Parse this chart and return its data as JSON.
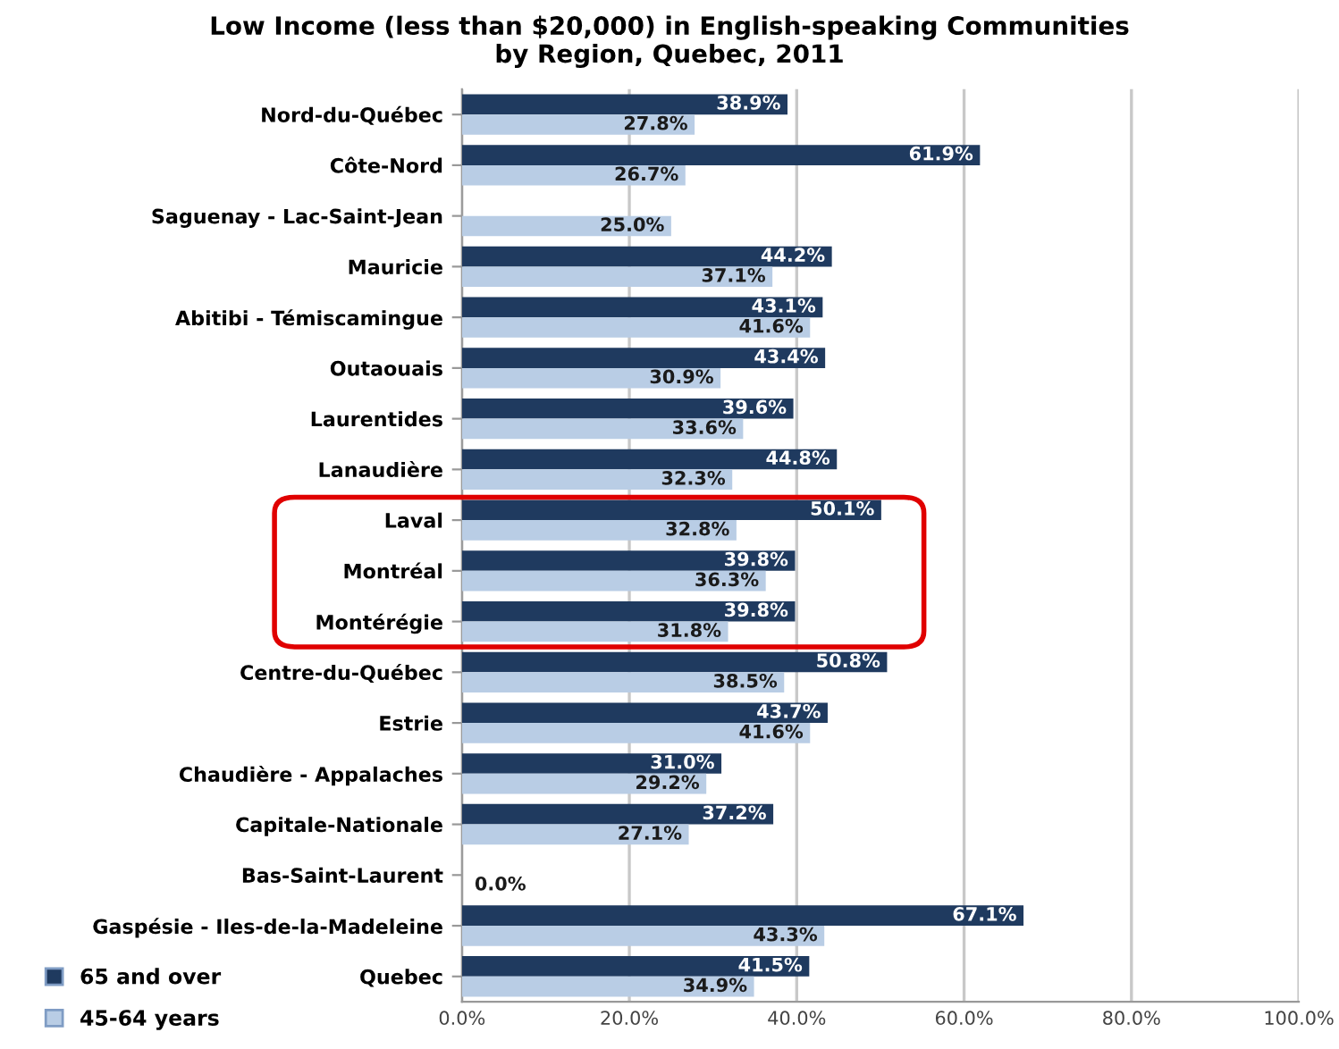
{
  "chart_data": {
    "type": "bar",
    "orientation": "horizontal",
    "title": "Low Income (less than $20,000) in English-speaking Communities\nby Region, Quebec, 2011",
    "categories": [
      "Nord-du-Québec",
      "Côte-Nord",
      "Saguenay - Lac-Saint-Jean",
      "Mauricie",
      "Abitibi - Témiscamingue",
      "Outaouais",
      "Laurentides",
      "Lanaudière",
      "Laval",
      "Montréal",
      "Montérégie",
      "Centre-du-Québec",
      "Estrie",
      "Chaudière - Appalaches",
      "Capitale-Nationale",
      "Bas-Saint-Laurent",
      "Gaspésie - Iles-de-la-Madeleine",
      "Quebec"
    ],
    "series": [
      {
        "name": "65 and over",
        "color": "#1f3a5f",
        "values": [
          38.9,
          61.9,
          null,
          44.2,
          43.1,
          43.4,
          39.6,
          44.8,
          50.1,
          39.8,
          39.8,
          50.8,
          43.7,
          31.0,
          37.2,
          null,
          67.1,
          41.5
        ],
        "value_labels": [
          "38.9%",
          "61.9%",
          null,
          "44.2%",
          "43.1%",
          "43.4%",
          "39.6%",
          "44.8%",
          "50.1%",
          "39.8%",
          "39.8%",
          "50.8%",
          "43.7%",
          "31.0%",
          "37.2%",
          null,
          "67.1%",
          "41.5%"
        ]
      },
      {
        "name": "45-64 years",
        "color": "#b9cde5",
        "values": [
          27.8,
          26.7,
          25.0,
          37.1,
          41.6,
          30.9,
          33.6,
          32.3,
          32.8,
          36.3,
          31.8,
          38.5,
          41.6,
          29.2,
          27.1,
          0.0,
          43.3,
          34.9
        ],
        "value_labels": [
          "27.8%",
          "26.7%",
          "25.0%",
          "37.1%",
          "41.6%",
          "30.9%",
          "33.6%",
          "32.3%",
          "32.8%",
          "36.3%",
          "31.8%",
          "38.5%",
          "41.6%",
          "29.2%",
          "27.1%",
          "0.0%",
          "43.3%",
          "34.9%"
        ]
      }
    ],
    "xlim": [
      0,
      100
    ],
    "xticks": [
      {
        "value": 0,
        "label": "0.0%"
      },
      {
        "value": 20,
        "label": "20.0%"
      },
      {
        "value": 40,
        "label": "40.0%"
      },
      {
        "value": 60,
        "label": "60.0%"
      },
      {
        "value": 80,
        "label": "80.0%"
      },
      {
        "value": 100,
        "label": "100.0%"
      }
    ],
    "grid": "x",
    "legend": "bottom left"
  }
}
